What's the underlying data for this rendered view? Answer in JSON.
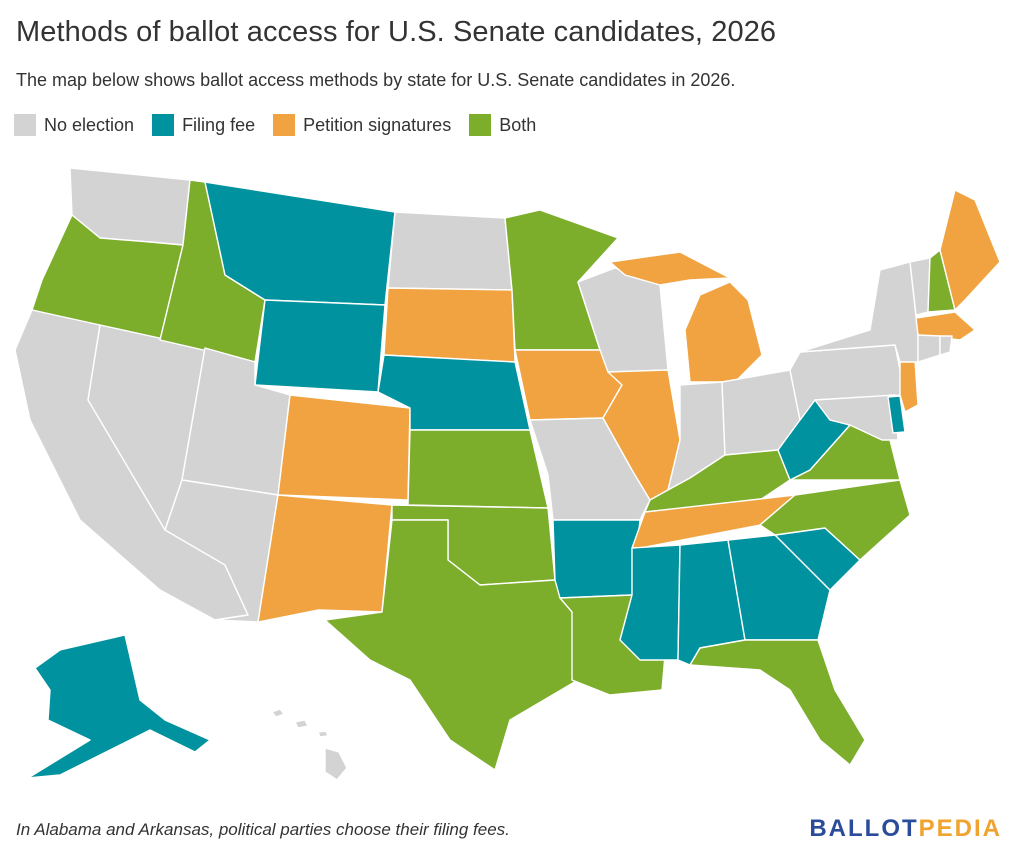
{
  "title": "Methods of ballot access for U.S. Senate candidates, 2026",
  "subtitle": "The map below shows ballot access methods by state for U.S. Senate candidates in 2026.",
  "legend": [
    {
      "label": "No election",
      "color": "#d3d3d3"
    },
    {
      "label": "Filing fee",
      "color": "#00939f"
    },
    {
      "label": "Petition signatures",
      "color": "#f0a340"
    },
    {
      "label": "Both",
      "color": "#7cad2b"
    }
  ],
  "colors": {
    "none": "#d3d3d3",
    "fee": "#00939f",
    "petition": "#f0a340",
    "both": "#7cad2b"
  },
  "states": {
    "WA": "none",
    "OR": "both",
    "CA": "none",
    "NV": "none",
    "ID": "both",
    "MT": "fee",
    "WY": "fee",
    "UT": "none",
    "AZ": "none",
    "CO": "petition",
    "NM": "petition",
    "ND": "none",
    "SD": "petition",
    "NE": "fee",
    "KS": "both",
    "OK": "both",
    "TX": "both",
    "MN": "both",
    "IA": "petition",
    "MO": "none",
    "AR": "fee",
    "LA": "both",
    "WI": "none",
    "IL": "petition",
    "MI": "petition",
    "IN": "none",
    "OH": "none",
    "KY": "both",
    "TN": "petition",
    "MS": "fee",
    "AL": "fee",
    "GA": "fee",
    "FL": "both",
    "SC": "fee",
    "NC": "both",
    "VA": "both",
    "WV": "fee",
    "PA": "none",
    "NY": "none",
    "VT": "none",
    "NH": "both",
    "ME": "petition",
    "MA": "petition",
    "RI": "none",
    "CT": "none",
    "NJ": "petition",
    "DE": "fee",
    "MD": "none",
    "AK": "fee",
    "HI": "none"
  },
  "footnote": "In Alabama and Arkansas, political parties choose their filing fees.",
  "logo": {
    "part1": "BALLOT",
    "part2": "PEDIA"
  }
}
